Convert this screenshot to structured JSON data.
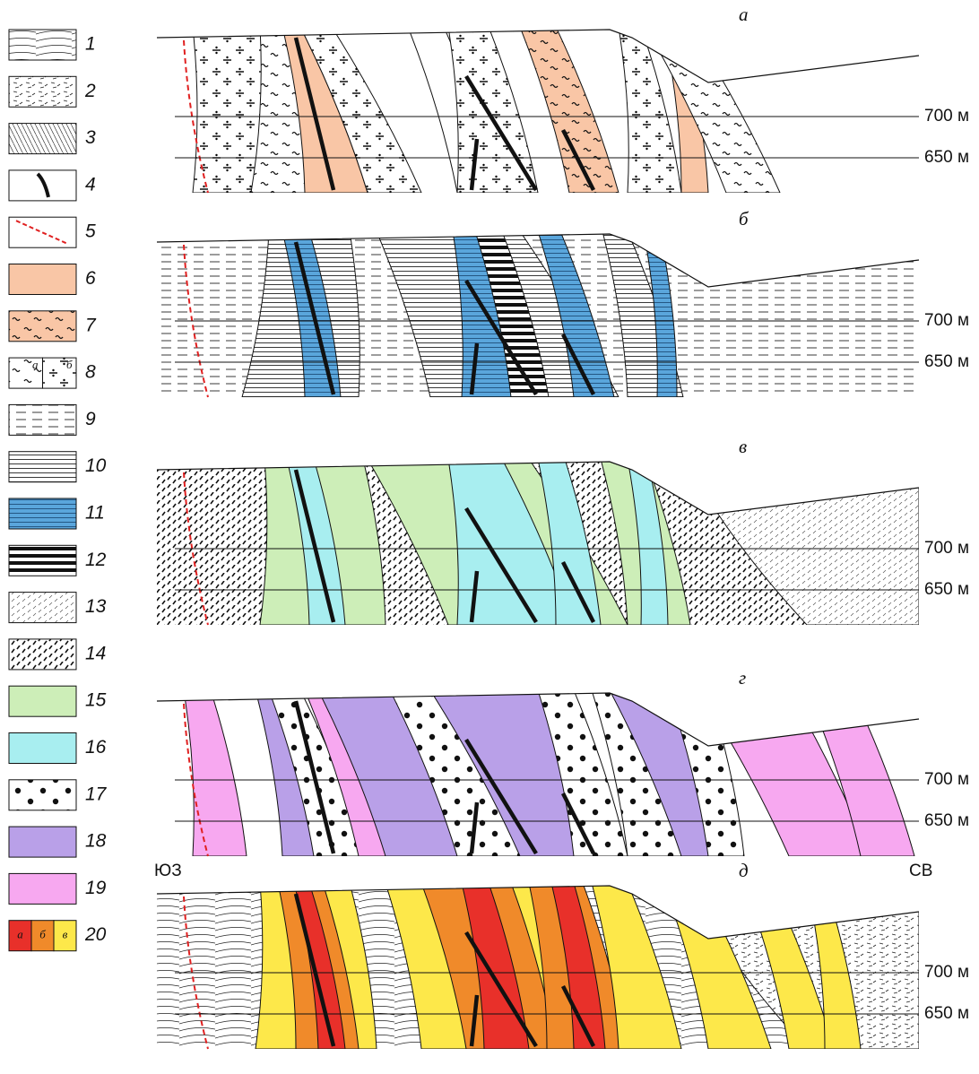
{
  "legend": {
    "items": [
      "1",
      "2",
      "3",
      "4",
      "5",
      "6",
      "7",
      "8",
      "9",
      "10",
      "11",
      "12",
      "13",
      "14",
      "15",
      "16",
      "17",
      "18",
      "19",
      "20"
    ],
    "item8_sublabels": [
      "а",
      "б"
    ],
    "item20_sublabels": [
      "а",
      "б",
      "в"
    ]
  },
  "panels": [
    {
      "label": "а",
      "levels": [
        "700 м",
        "650 м"
      ]
    },
    {
      "label": "б",
      "levels": [
        "700 м",
        "650 м"
      ]
    },
    {
      "label": "в",
      "levels": [
        "700 м",
        "650 м"
      ]
    },
    {
      "label": "г",
      "levels": [
        "700 м",
        "650 м"
      ]
    },
    {
      "label": "д",
      "levels": [
        "700 м",
        "650 м"
      ]
    }
  ],
  "directions": {
    "left": "ЮЗ",
    "right": "СВ"
  }
}
